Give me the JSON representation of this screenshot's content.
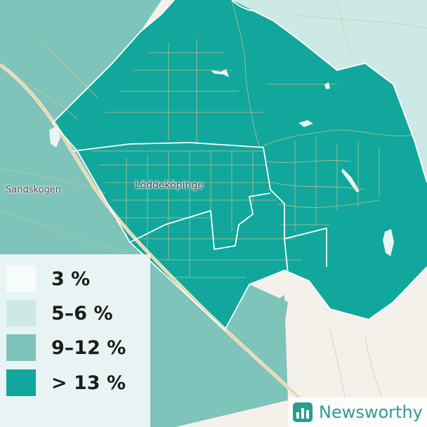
{
  "map": {
    "places": [
      {
        "name": "Löddeköpinge"
      },
      {
        "name": "Sandskogen"
      }
    ]
  },
  "legend": {
    "items": [
      {
        "label": "3 %",
        "color": "#f5fcfb"
      },
      {
        "label": "5–6 %",
        "color": "#cde9e6"
      },
      {
        "label": "9–12 %",
        "color": "#7ec4bb"
      },
      {
        "label": "> 13 %",
        "color": "#11a79c"
      }
    ]
  },
  "brand": {
    "name": "Newsworthy",
    "color": "#2a9d8f"
  },
  "colors": {
    "land": "#f4f1ea",
    "roads": "#d9c48e",
    "boundary": "#ffffff"
  }
}
